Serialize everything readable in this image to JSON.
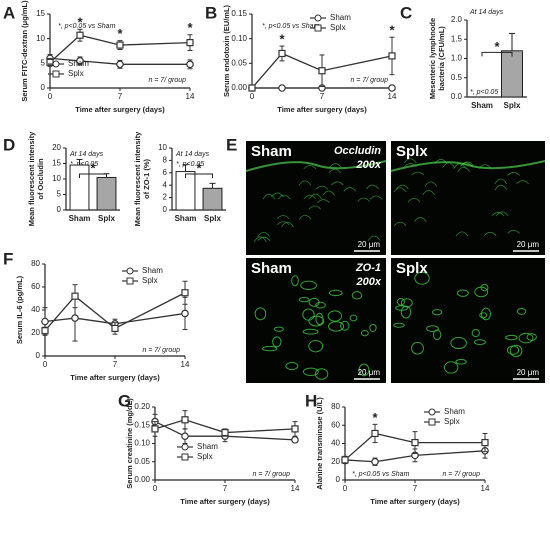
{
  "chart_data": [
    {
      "panel": "A",
      "type": "line",
      "y_label": "Serum FITC-dextran (μg/mL)",
      "x_label": "Time after surgery (days)",
      "x": [
        0,
        3,
        7,
        14
      ],
      "xlim": [
        0,
        14
      ],
      "xticks": [
        0,
        7,
        14
      ],
      "ylim": [
        0,
        15
      ],
      "yticks": [
        0,
        5,
        10,
        15
      ],
      "legend": "lower left",
      "series": [
        {
          "name": "Sham",
          "color": "#333333",
          "marker": "circle",
          "values": [
            6,
            5.5,
            4.8,
            4.8
          ],
          "errors": [
            0.8,
            0.8,
            0.8,
            0.9
          ]
        },
        {
          "name": "Splx",
          "color": "#333333",
          "marker": "square",
          "values": [
            5.2,
            10.7,
            8.7,
            9.2
          ],
          "errors": [
            0.8,
            1.2,
            0.9,
            1.6
          ]
        }
      ],
      "significance": [
        {
          "x": 3,
          "label": "*"
        },
        {
          "x": 7,
          "label": "*"
        },
        {
          "x": 14,
          "label": "*"
        }
      ],
      "annotations": [
        "*, p<0.05 vs Sham",
        "n = 7/ group"
      ]
    },
    {
      "panel": "B",
      "type": "line",
      "y_label": "Serum endotoxin (EU/mL)",
      "x_label": "Time after surgery (days)",
      "x": [
        0,
        3,
        7,
        14
      ],
      "xlim": [
        0,
        14
      ],
      "xticks": [
        0,
        7,
        14
      ],
      "ylim": [
        0,
        0.15
      ],
      "yticks": [
        {
          "value": 0,
          "label": "0.00"
        },
        {
          "value": 0.05,
          "label": "0.05"
        },
        {
          "value": 0.1,
          "label": "0.10"
        },
        {
          "value": 0.15,
          "label": "0.15"
        }
      ],
      "legend": "upper right",
      "series": [
        {
          "name": "Sham",
          "color": "#333333",
          "marker": "circle",
          "values": [
            0,
            0,
            0,
            0
          ],
          "errors": [
            0,
            0,
            0,
            0
          ]
        },
        {
          "name": "Splx",
          "color": "#333333",
          "marker": "square",
          "values": [
            0,
            0.07,
            0.035,
            0.065
          ],
          "errors": [
            0,
            0.015,
            0.032,
            0.038
          ]
        }
      ],
      "significance": [
        {
          "x": 3,
          "label": "*"
        },
        {
          "x": 14,
          "label": "*"
        }
      ],
      "annotations": [
        "*, p<0.05 vs Sham",
        "n = 7/ group"
      ]
    },
    {
      "panel": "C",
      "type": "bar",
      "y_label": [
        "Mesenteric lymphnode",
        "bacteria (CFU/mL)"
      ],
      "categories": [
        "Sham",
        "Splx"
      ],
      "values": [
        0,
        1.2
      ],
      "errors": [
        0,
        0.45
      ],
      "colors": [
        "#ffffff",
        "#a6a6a6"
      ],
      "ylim": [
        0,
        2
      ],
      "yticks": [
        {
          "value": 0,
          "label": "0.0"
        },
        {
          "value": 0.5,
          "label": "0.5"
        },
        {
          "value": 1,
          "label": "1.0"
        },
        {
          "value": 1.5,
          "label": "1.5"
        },
        {
          "value": 2,
          "label": "2.0"
        }
      ],
      "significance": {
        "label": "*"
      },
      "annotations": [
        "At 14 days",
        "*, p<0.05"
      ]
    },
    {
      "panel": "D",
      "type": "bar",
      "y_label": [
        "Mean fluorescent intensity",
        "of Occludin"
      ],
      "categories": [
        "Sham",
        "Splx"
      ],
      "values": [
        14.5,
        10.5
      ],
      "errors": [
        1.8,
        1.2
      ],
      "colors": [
        "#ffffff",
        "#a6a6a6"
      ],
      "ylim": [
        0,
        20
      ],
      "yticks": [
        0,
        5,
        10,
        15,
        20
      ],
      "significance": {
        "label": "*"
      },
      "annotations": [
        "At 14 days",
        "*, p<0.05"
      ]
    },
    {
      "type": "bar",
      "y_label": [
        "Mean fluorescent intensity",
        "of ZO-1 (%)"
      ],
      "categories": [
        "Sham",
        "Splx"
      ],
      "values": [
        6.2,
        3.5
      ],
      "errors": [
        1.1,
        0.8
      ],
      "colors": [
        "#ffffff",
        "#a6a6a6"
      ],
      "ylim": [
        0,
        10
      ],
      "yticks": [
        0,
        2,
        4,
        6,
        8,
        10
      ],
      "significance": {
        "label": "*"
      },
      "annotations": [
        "At 14 days",
        "*, p<0.05"
      ]
    },
    {
      "panel": "F",
      "type": "line",
      "y_label": "Serum IL-6 (pg/mL)",
      "x_label": "Time after surgery (days)",
      "x": [
        0,
        3,
        7,
        14
      ],
      "xlim": [
        0,
        14
      ],
      "xticks": [
        0,
        7,
        14
      ],
      "ylim": [
        0,
        80
      ],
      "yticks": [
        0,
        20,
        40,
        60,
        80
      ],
      "legend": "upper right",
      "series": [
        {
          "name": "Sham",
          "color": "#333333",
          "marker": "circle",
          "values": [
            30,
            33,
            28,
            37
          ],
          "errors": [
            12,
            20,
            4,
            14
          ]
        },
        {
          "name": "Splx",
          "color": "#333333",
          "marker": "square",
          "values": [
            22,
            52,
            24,
            55
          ],
          "errors": [
            3,
            10,
            5,
            10
          ]
        }
      ],
      "annotations": [
        "n = 7/ group"
      ]
    },
    {
      "panel": "G",
      "type": "line",
      "y_label": "Serum creatinine (mg/dL)",
      "x_label": "Time after surgery (days)",
      "x": [
        0,
        3,
        7,
        14
      ],
      "xlim": [
        0,
        14
      ],
      "xticks": [
        0,
        7,
        14
      ],
      "ylim": [
        0,
        0.2
      ],
      "yticks": [
        {
          "value": 0,
          "label": "0.00"
        },
        {
          "value": 0.05,
          "label": "0.05"
        },
        {
          "value": 0.1,
          "label": "0.10"
        },
        {
          "value": 0.15,
          "label": "0.15"
        },
        {
          "value": 0.2,
          "label": "0.20"
        }
      ],
      "legend": "lower center",
      "series": [
        {
          "name": "Sham",
          "color": "#333333",
          "marker": "circle",
          "values": [
            0.16,
            0.12,
            0.12,
            0.11
          ],
          "errors": [
            0.02,
            0.02,
            0.015,
            0.005
          ]
        },
        {
          "name": "Splx",
          "color": "#333333",
          "marker": "square",
          "values": [
            0.14,
            0.165,
            0.13,
            0.14
          ],
          "errors": [
            0.02,
            0.025,
            0.01,
            0.02
          ]
        }
      ],
      "annotations": [
        "n = 7/ group"
      ]
    },
    {
      "panel": "H",
      "type": "line",
      "y_label": "Alanine transminase (U/L)",
      "x_label": "Time after surgery (days)",
      "x": [
        0,
        3,
        7,
        14
      ],
      "xlim": [
        0,
        14
      ],
      "xticks": [
        0,
        7,
        14
      ],
      "ylim": [
        0,
        80
      ],
      "yticks": [
        0,
        20,
        40,
        60,
        80
      ],
      "legend": "upper right",
      "series": [
        {
          "name": "Sham",
          "color": "#333333",
          "marker": "circle",
          "values": [
            22,
            20,
            27,
            32
          ],
          "errors": [
            4,
            4,
            7,
            8
          ]
        },
        {
          "name": "Splx",
          "color": "#333333",
          "marker": "square",
          "values": [
            22,
            51,
            41,
            41
          ],
          "errors": [
            3,
            10,
            12,
            10
          ]
        }
      ],
      "significance": [
        {
          "x": 3,
          "label": "*"
        }
      ],
      "annotations": [
        "*, p<0.05 vs Sham",
        "n = 7/ group"
      ]
    }
  ],
  "micrographs": {
    "panel": "E",
    "images": [
      {
        "group": "Sham",
        "stain": "Occludin",
        "magnification": "200x",
        "scale": "20 μm"
      },
      {
        "group": "Splx",
        "scale": "20 μm"
      },
      {
        "group": "Sham",
        "stain": "ZO-1",
        "magnification": "200x",
        "scale": "20 μm"
      },
      {
        "group": "Splx",
        "scale": "20 μm"
      }
    ]
  }
}
